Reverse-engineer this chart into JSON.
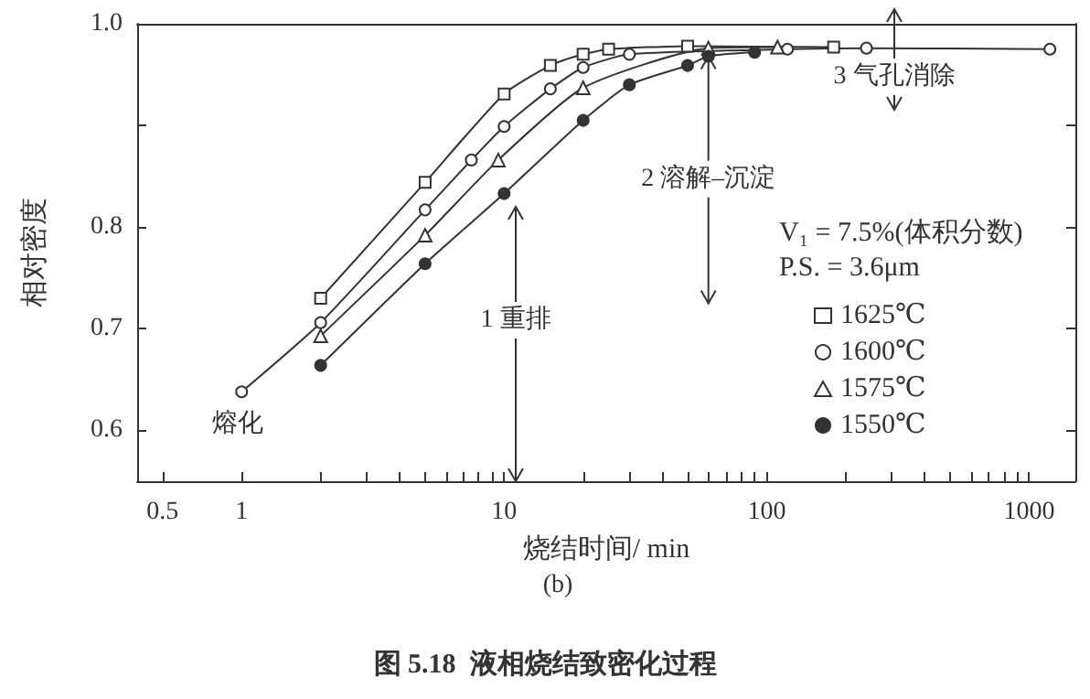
{
  "chart_data": {
    "type": "line",
    "title": "图 5.18  液相烧结致密化过程",
    "subtitle": "(b)",
    "xlabel": "烧结时间/ min",
    "ylabel": "相对密度",
    "legend_title": "V₁ = 7.5%(体积分数)\nP.S. = 3.6μm",
    "log": "x",
    "xlim": [
      0.4,
      1500
    ],
    "ylim": [
      0.55,
      1.0
    ],
    "xticks": [
      0.5,
      1,
      {
        "value": 2,
        "label": null
      },
      {
        "value": 3,
        "label": null
      },
      {
        "value": 4,
        "label": null
      },
      {
        "value": 5,
        "label": null
      },
      {
        "value": 6,
        "label": null
      },
      {
        "value": 7,
        "label": null
      },
      {
        "value": 8,
        "label": null
      },
      {
        "value": 9,
        "label": null
      },
      10,
      {
        "value": 20,
        "label": null
      },
      {
        "value": 30,
        "label": null
      },
      {
        "value": 40,
        "label": null
      },
      {
        "value": 50,
        "label": null
      },
      {
        "value": 60,
        "label": null
      },
      {
        "value": 70,
        "label": null
      },
      {
        "value": 80,
        "label": null
      },
      {
        "value": 90,
        "label": null
      },
      100,
      {
        "value": 200,
        "label": null
      },
      {
        "value": 300,
        "label": null
      },
      {
        "value": 400,
        "label": null
      },
      {
        "value": 500,
        "label": null
      },
      {
        "value": 600,
        "label": null
      },
      {
        "value": 700,
        "label": null
      },
      {
        "value": 800,
        "label": null
      },
      {
        "value": 900,
        "label": null
      },
      1000
    ],
    "yticks": [
      0.6,
      0.7,
      0.8,
      {
        "value": 0.9,
        "label": null
      },
      {
        "value": 1,
        "label": "1.0"
      }
    ],
    "grid": false,
    "legend": "right",
    "line_style": "solid",
    "series": [
      {
        "name": "1625℃",
        "color": "#333333",
        "marker": "square",
        "x": [
          2,
          5,
          10,
          15,
          20,
          25,
          50,
          180
        ],
        "values": [
          0.73,
          0.844,
          0.931,
          0.959,
          0.97,
          0.975,
          0.978,
          0.977
        ]
      },
      {
        "name": "1600℃",
        "color": "#333333",
        "marker": "circle",
        "x": [
          1,
          2,
          5,
          7.5,
          10,
          15,
          20,
          30,
          120,
          240,
          1200
        ],
        "values": [
          0.638,
          0.706,
          0.817,
          0.866,
          0.899,
          0.936,
          0.957,
          0.97,
          0.975,
          0.976,
          0.975
        ]
      },
      {
        "name": "1575℃",
        "color": "#333333",
        "marker": "triangle",
        "x": [
          2,
          5,
          9.5,
          20,
          60,
          110
        ],
        "values": [
          0.693,
          0.792,
          0.866,
          0.937,
          0.976,
          0.977
        ]
      },
      {
        "name": "1550℃",
        "color": "#333333",
        "marker": "circle",
        "colors": [
          "#333333",
          "#333333",
          "#333333",
          "#333333",
          "#333333",
          "#333333",
          "#333333",
          "#333333"
        ],
        "x": [
          2,
          5,
          10,
          20,
          30,
          50,
          60,
          90
        ],
        "values": [
          0.664,
          0.764,
          0.833,
          0.905,
          0.94,
          0.959,
          0.968,
          0.972
        ]
      }
    ],
    "annotations": [
      "熔化",
      "1 重排",
      {
        "text": "2 溶解–沉淀",
        "x": 60,
        "y": 0.968
      },
      "3 气孔消除"
    ]
  }
}
